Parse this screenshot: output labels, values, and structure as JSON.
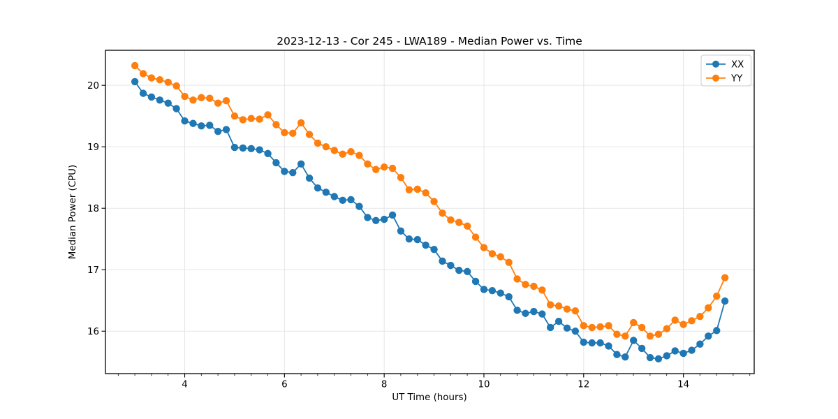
{
  "figure": {
    "background_color": "#ffffff",
    "plot_background_color": "#ffffff",
    "spine_color": "#000000",
    "grid_color": "#e6e6e6",
    "legend_border_color": "#cccccc"
  },
  "chart_data": {
    "type": "line",
    "title": "2023-12-13 - Cor 245 - LWA189 - Median Power vs. Time",
    "xlabel": "UT Time (hours)",
    "ylabel": "Median Power (CPU)",
    "xlim": [
      2.41,
      15.42
    ],
    "ylim": [
      15.31,
      20.57
    ],
    "x_ticks": [
      4,
      6,
      8,
      10,
      12,
      14
    ],
    "x_tick_labels": [
      "4",
      "6",
      "8",
      "10",
      "12",
      "14"
    ],
    "x_minor_interval": 0.3333,
    "y_ticks": [
      16,
      17,
      18,
      19,
      20
    ],
    "y_tick_labels": [
      "16",
      "17",
      "18",
      "19",
      "20"
    ],
    "grid": true,
    "legend_position": "upper right",
    "marker": "circle",
    "x": [
      3.0,
      3.167,
      3.333,
      3.5,
      3.667,
      3.833,
      4.0,
      4.167,
      4.333,
      4.5,
      4.667,
      4.833,
      5.0,
      5.167,
      5.333,
      5.5,
      5.667,
      5.833,
      6.0,
      6.167,
      6.333,
      6.5,
      6.667,
      6.833,
      7.0,
      7.167,
      7.333,
      7.5,
      7.667,
      7.833,
      8.0,
      8.167,
      8.333,
      8.5,
      8.667,
      8.833,
      9.0,
      9.167,
      9.333,
      9.5,
      9.667,
      9.833,
      10.0,
      10.167,
      10.333,
      10.5,
      10.667,
      10.833,
      11.0,
      11.167,
      11.333,
      11.5,
      11.667,
      11.833,
      12.0,
      12.167,
      12.333,
      12.5,
      12.667,
      12.833,
      13.0,
      13.167,
      13.333,
      13.5,
      13.667,
      13.833,
      14.0,
      14.167,
      14.333,
      14.5,
      14.667,
      14.833
    ],
    "series": [
      {
        "name": "XX",
        "color": "#1f77b4",
        "values": [
          20.06,
          19.87,
          19.81,
          19.76,
          19.71,
          19.62,
          19.42,
          19.38,
          19.34,
          19.35,
          19.25,
          19.28,
          18.99,
          18.98,
          18.97,
          18.95,
          18.89,
          18.74,
          18.6,
          18.58,
          18.72,
          18.49,
          18.33,
          18.26,
          18.19,
          18.13,
          18.14,
          18.03,
          17.85,
          17.8,
          17.82,
          17.89,
          17.63,
          17.5,
          17.49,
          17.4,
          17.33,
          17.14,
          17.07,
          16.99,
          16.97,
          16.81,
          16.68,
          16.66,
          16.62,
          16.56,
          16.34,
          16.29,
          16.32,
          16.28,
          16.06,
          16.16,
          16.05,
          16.0,
          15.82,
          15.81,
          15.81,
          15.76,
          15.62,
          15.58,
          15.85,
          15.72,
          15.57,
          15.55,
          15.6,
          15.68,
          15.64,
          15.69,
          15.79,
          15.92,
          16.01,
          16.49
        ]
      },
      {
        "name": "YY",
        "color": "#ff7f0e",
        "values": [
          20.32,
          20.19,
          20.12,
          20.09,
          20.05,
          19.99,
          19.82,
          19.76,
          19.8,
          19.79,
          19.71,
          19.75,
          19.5,
          19.44,
          19.46,
          19.45,
          19.52,
          19.36,
          19.23,
          19.22,
          19.39,
          19.2,
          19.06,
          19.0,
          18.94,
          18.88,
          18.92,
          18.86,
          18.72,
          18.63,
          18.67,
          18.65,
          18.5,
          18.3,
          18.31,
          18.25,
          18.11,
          17.92,
          17.81,
          17.77,
          17.71,
          17.53,
          17.36,
          17.26,
          17.21,
          17.12,
          16.85,
          16.76,
          16.73,
          16.67,
          16.43,
          16.41,
          16.36,
          16.33,
          16.09,
          16.06,
          16.07,
          16.09,
          15.95,
          15.92,
          16.14,
          16.06,
          15.92,
          15.95,
          16.04,
          16.18,
          16.11,
          16.17,
          16.24,
          16.38,
          16.57,
          16.87
        ]
      }
    ]
  }
}
